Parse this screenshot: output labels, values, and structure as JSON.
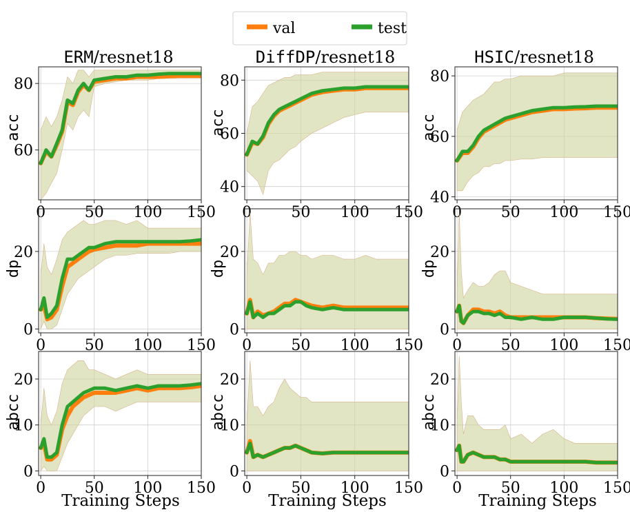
{
  "legend": {
    "entries": [
      {
        "name": "val",
        "color": "#ff7f0e"
      },
      {
        "name": "test",
        "color": "#2ca02c"
      }
    ]
  },
  "chart_data": {
    "type": "line",
    "xlabel": "Training Steps",
    "band_color": "#cfd39d",
    "columns": [
      {
        "method": "ERM",
        "model": "/resnet18"
      },
      {
        "method": "DiffDP",
        "model": "/resnet18"
      },
      {
        "method": "HSIC",
        "model": "/resnet18"
      }
    ],
    "rows": [
      "acc",
      "dp",
      "abcc"
    ],
    "panels": [
      {
        "row": "acc",
        "col": "ERM",
        "xlim": [
          -2,
          150
        ],
        "ylim": [
          45,
          85
        ],
        "xticks": [
          0,
          50,
          100,
          150
        ],
        "yticks": [
          60,
          80
        ],
        "x": [
          0,
          5,
          10,
          15,
          20,
          25,
          30,
          35,
          40,
          45,
          50,
          60,
          70,
          80,
          90,
          100,
          110,
          120,
          130,
          140,
          150
        ],
        "test": [
          56,
          60,
          58,
          62,
          66,
          75,
          74,
          78,
          80,
          78,
          81,
          81.5,
          82,
          82,
          82.5,
          82.5,
          82.8,
          83,
          83,
          83,
          83
        ],
        "val": [
          56,
          59.5,
          58,
          61.5,
          65.5,
          74.5,
          73.5,
          77.5,
          79.5,
          78,
          80.5,
          81,
          81.5,
          81.5,
          82,
          82,
          82,
          82.2,
          82.3,
          82.3,
          82.3
        ],
        "lo": [
          45,
          47,
          50,
          53,
          60,
          68,
          66,
          70,
          72,
          70,
          79,
          80,
          80.5,
          81,
          81,
          81,
          81.5,
          81.5,
          81.5,
          81.5,
          81.5
        ],
        "hi": [
          66,
          70,
          67,
          70,
          75,
          82,
          80,
          84,
          84,
          82,
          84,
          84,
          84,
          84,
          84,
          84,
          84,
          84,
          84,
          84,
          84
        ]
      },
      {
        "row": "acc",
        "col": "DiffDP",
        "xlim": [
          -2,
          150
        ],
        "ylim": [
          35,
          85
        ],
        "xticks": [
          0,
          50,
          100,
          150
        ],
        "yticks": [
          40,
          60,
          80
        ],
        "x": [
          0,
          5,
          10,
          15,
          20,
          25,
          30,
          35,
          40,
          45,
          50,
          60,
          70,
          80,
          90,
          100,
          110,
          120,
          130,
          140,
          150
        ],
        "test": [
          52,
          57,
          56,
          59,
          64,
          67,
          69,
          70,
          71,
          72,
          73,
          75,
          76,
          76.5,
          77,
          77,
          77.5,
          77.5,
          77.5,
          77.5,
          77.5
        ],
        "val": [
          52,
          56.5,
          56,
          58.5,
          63.5,
          66.5,
          68.5,
          69.5,
          70.5,
          71.5,
          72.5,
          74.5,
          75.5,
          76,
          76.5,
          76.5,
          77,
          77,
          77,
          77,
          77
        ],
        "lo": [
          46,
          44,
          42,
          37,
          46,
          49,
          50,
          52,
          54,
          55,
          57,
          60,
          62,
          64,
          66,
          67,
          68,
          68,
          68,
          68,
          68
        ],
        "hi": [
          60,
          70,
          72,
          75,
          78,
          79,
          80,
          81,
          81,
          82,
          82,
          82,
          83,
          83,
          83,
          83,
          83,
          83,
          83,
          83,
          83
        ]
      },
      {
        "row": "acc",
        "col": "HSIC",
        "xlim": [
          -2,
          150
        ],
        "ylim": [
          39,
          83
        ],
        "xticks": [
          0,
          50,
          100,
          150
        ],
        "yticks": [
          40,
          60,
          80
        ],
        "x": [
          0,
          5,
          10,
          15,
          20,
          25,
          30,
          35,
          40,
          45,
          50,
          60,
          70,
          80,
          90,
          100,
          110,
          120,
          130,
          140,
          150
        ],
        "test": [
          52,
          55,
          55,
          57,
          60,
          62,
          63,
          64,
          65,
          66,
          66.5,
          67.5,
          68.5,
          69,
          69.5,
          69.5,
          69.7,
          69.8,
          70,
          70,
          70
        ],
        "val": [
          52,
          54.5,
          54.5,
          56.5,
          59.5,
          61.5,
          62.5,
          63.5,
          64.5,
          65.5,
          66,
          67,
          68,
          68.5,
          69,
          69,
          69.2,
          69.3,
          69.5,
          69.5,
          69.5
        ],
        "lo": [
          42,
          42,
          45,
          47,
          48,
          50,
          50,
          51,
          51,
          52,
          52,
          52.5,
          52.5,
          53,
          53,
          53,
          53,
          53,
          53,
          53,
          53
        ],
        "hi": [
          62,
          68,
          70,
          72,
          73,
          74,
          76,
          78,
          78,
          79,
          79,
          80,
          80,
          80,
          80,
          81,
          81,
          81,
          81,
          81,
          81
        ]
      },
      {
        "row": "dp",
        "col": "ERM",
        "xlim": [
          -2,
          150
        ],
        "ylim": [
          -1,
          31
        ],
        "xticks": [
          0,
          50,
          100,
          150
        ],
        "yticks": [
          0,
          20
        ],
        "x": [
          0,
          3,
          6,
          10,
          15,
          20,
          25,
          30,
          35,
          40,
          45,
          50,
          60,
          70,
          80,
          90,
          100,
          110,
          120,
          130,
          140,
          150
        ],
        "test": [
          5,
          8,
          3,
          4,
          6,
          13,
          18,
          18,
          19,
          20,
          21,
          21,
          22,
          22.5,
          22.5,
          22.5,
          22.5,
          22.5,
          22.5,
          22.5,
          22.7,
          23
        ],
        "val": [
          5,
          6,
          2.5,
          3,
          5,
          11,
          16,
          17,
          18,
          19,
          20,
          20.5,
          21,
          21.5,
          21.5,
          21.5,
          22,
          22,
          22,
          22,
          22,
          22
        ],
        "lo": [
          0,
          2,
          0,
          0,
          1,
          5,
          9,
          11,
          13,
          14,
          15,
          16,
          18,
          19,
          19,
          19.5,
          19.5,
          19.5,
          19.5,
          20,
          20,
          20
        ],
        "hi": [
          14,
          22,
          16,
          14,
          18,
          23,
          25,
          26,
          27,
          28,
          27,
          27,
          28,
          28,
          27,
          28,
          26,
          26,
          26,
          26,
          26,
          26
        ]
      },
      {
        "row": "dp",
        "col": "DiffDP",
        "xlim": [
          -2,
          150
        ],
        "ylim": [
          -1,
          31
        ],
        "xticks": [
          0,
          50,
          100,
          150
        ],
        "yticks": [
          0,
          20
        ],
        "x": [
          0,
          3,
          6,
          10,
          15,
          20,
          25,
          30,
          35,
          40,
          45,
          50,
          55,
          60,
          70,
          80,
          90,
          100,
          110,
          120,
          130,
          140,
          150
        ],
        "test": [
          4,
          7,
          3,
          4,
          3,
          4,
          4,
          5,
          6,
          6,
          7,
          7,
          6,
          5.5,
          5,
          5.5,
          5,
          5,
          5,
          5,
          5,
          5,
          5
        ],
        "val": [
          4,
          7.5,
          3,
          4.5,
          3.5,
          4,
          4.5,
          5.5,
          6.5,
          6.5,
          7.5,
          7,
          6.5,
          6,
          5.5,
          6,
          5.5,
          5.5,
          5.5,
          5.5,
          5.5,
          5.5,
          5.5
        ],
        "lo": [
          0,
          0,
          0,
          0,
          0,
          0,
          0,
          0,
          0,
          0,
          0,
          0,
          0,
          0,
          0,
          0,
          0,
          0,
          0,
          0,
          0,
          0,
          0
        ],
        "hi": [
          14,
          30,
          18,
          17,
          14,
          17,
          17,
          19,
          19,
          20,
          20,
          19,
          19,
          18,
          19,
          19,
          18,
          18,
          19,
          18,
          18,
          18,
          18
        ]
      },
      {
        "row": "dp",
        "col": "HSIC",
        "xlim": [
          -2,
          150
        ],
        "ylim": [
          -1,
          31
        ],
        "xticks": [
          0,
          50,
          100,
          150
        ],
        "yticks": [
          0,
          20
        ],
        "x": [
          0,
          2,
          4,
          6,
          10,
          15,
          20,
          25,
          30,
          35,
          40,
          45,
          50,
          60,
          70,
          80,
          90,
          100,
          110,
          120,
          130,
          140,
          150
        ],
        "test": [
          4.5,
          6,
          2,
          1.5,
          3.5,
          4.5,
          4.5,
          4,
          4,
          3.5,
          4,
          3,
          3,
          2.5,
          3,
          2.5,
          2.5,
          3,
          3,
          3,
          2.8,
          2.6,
          2.5
        ],
        "val": [
          4.5,
          6,
          2,
          1.5,
          3.5,
          5,
          5,
          4.5,
          4.5,
          4,
          4.5,
          3.5,
          3,
          3,
          3,
          3,
          3,
          3,
          3,
          3,
          2.8,
          2.7,
          2.6
        ],
        "lo": [
          0,
          0,
          0,
          0,
          0,
          0,
          0,
          0,
          0,
          0,
          0,
          0,
          0,
          0,
          0,
          0,
          0,
          0,
          0,
          0,
          0,
          0,
          0
        ],
        "hi": [
          10,
          30,
          15,
          8,
          10,
          12,
          11,
          11,
          12,
          14,
          15,
          15,
          12,
          11,
          10,
          9,
          9,
          9,
          9,
          9,
          9,
          9,
          9
        ]
      },
      {
        "row": "abcc",
        "col": "ERM",
        "xlim": [
          -2,
          150
        ],
        "ylim": [
          -1,
          26
        ],
        "xticks": [
          0,
          50,
          100,
          150
        ],
        "yticks": [
          0,
          10,
          20
        ],
        "x": [
          0,
          3,
          6,
          10,
          15,
          20,
          25,
          30,
          35,
          40,
          45,
          50,
          60,
          70,
          80,
          90,
          100,
          110,
          120,
          130,
          140,
          150
        ],
        "test": [
          5,
          7,
          3,
          3,
          4,
          10,
          14,
          15,
          16,
          17,
          17.5,
          18,
          18,
          17.5,
          18,
          18.5,
          18,
          18.5,
          18.5,
          18.5,
          18.7,
          19
        ],
        "val": [
          5,
          6,
          2.5,
          2.5,
          3.5,
          9,
          12,
          14,
          15,
          16,
          16.5,
          17,
          17,
          17,
          17.5,
          18,
          17.5,
          18,
          18,
          18,
          18.2,
          18.5
        ],
        "lo": [
          0,
          1,
          0,
          0,
          0,
          3,
          6,
          8,
          10,
          12,
          13,
          14,
          14,
          13,
          14,
          15,
          15,
          15,
          15,
          15,
          15,
          15
        ],
        "hi": [
          10,
          18,
          12,
          10,
          13,
          19,
          22,
          23,
          24,
          24,
          22,
          22,
          21,
          20,
          21,
          22,
          21,
          21,
          21,
          21,
          21,
          21
        ]
      },
      {
        "row": "abcc",
        "col": "DiffDP",
        "xlim": [
          -2,
          150
        ],
        "ylim": [
          -1,
          26
        ],
        "xticks": [
          0,
          50,
          100,
          150
        ],
        "yticks": [
          0,
          10,
          20
        ],
        "x": [
          0,
          3,
          6,
          10,
          15,
          20,
          25,
          30,
          35,
          40,
          45,
          50,
          55,
          60,
          70,
          80,
          90,
          100,
          110,
          120,
          130,
          140,
          150
        ],
        "test": [
          4,
          6,
          3,
          3.5,
          3,
          3.5,
          4,
          4.5,
          5,
          5,
          5.5,
          5,
          4.5,
          4,
          3.8,
          4,
          4,
          4,
          4,
          4,
          4,
          4,
          4
        ],
        "val": [
          4,
          6.5,
          3,
          3.5,
          3,
          3.5,
          4,
          4.5,
          5,
          5,
          5.5,
          5,
          4.5,
          4,
          3.8,
          4,
          4,
          4,
          4,
          4,
          4,
          4,
          4
        ],
        "lo": [
          0,
          0,
          0,
          0,
          0,
          0,
          0,
          0,
          0,
          0,
          0,
          0,
          0,
          0,
          0,
          0,
          0,
          0,
          0,
          0,
          0,
          0,
          0
        ],
        "hi": [
          10,
          24,
          14,
          14,
          12,
          14,
          15,
          18,
          20,
          18,
          17,
          16,
          16,
          15,
          15,
          15,
          15,
          15,
          15,
          15,
          15,
          15,
          15
        ]
      },
      {
        "row": "abcc",
        "col": "HSIC",
        "xlim": [
          -2,
          150
        ],
        "ylim": [
          -1,
          26
        ],
        "xticks": [
          0,
          50,
          100,
          150
        ],
        "yticks": [
          0,
          10,
          20
        ],
        "x": [
          0,
          2,
          4,
          6,
          10,
          15,
          20,
          25,
          30,
          35,
          40,
          45,
          50,
          60,
          70,
          80,
          90,
          100,
          110,
          120,
          130,
          140,
          150
        ],
        "test": [
          4.5,
          5.5,
          2,
          2,
          3.5,
          4,
          3.5,
          3,
          3,
          3,
          2.5,
          2.5,
          2,
          2,
          2,
          2,
          2,
          2,
          2,
          2,
          1.8,
          1.8,
          1.8
        ],
        "val": [
          4.5,
          5.5,
          2,
          2,
          3.5,
          4,
          3.5,
          3,
          3,
          3,
          2.5,
          2.5,
          2,
          2,
          2,
          2,
          2,
          2,
          2,
          2,
          1.8,
          1.8,
          1.8
        ],
        "lo": [
          0,
          0,
          0,
          0,
          0,
          0,
          0,
          0,
          0,
          0,
          0,
          0,
          0,
          0,
          0,
          0,
          0,
          0,
          0,
          0,
          0,
          0,
          0
        ],
        "hi": [
          10,
          25,
          15,
          8,
          12,
          12,
          10,
          9,
          9,
          9,
          9,
          10,
          7,
          8,
          6,
          8,
          9,
          7,
          6,
          6,
          6,
          6,
          6
        ]
      }
    ]
  }
}
